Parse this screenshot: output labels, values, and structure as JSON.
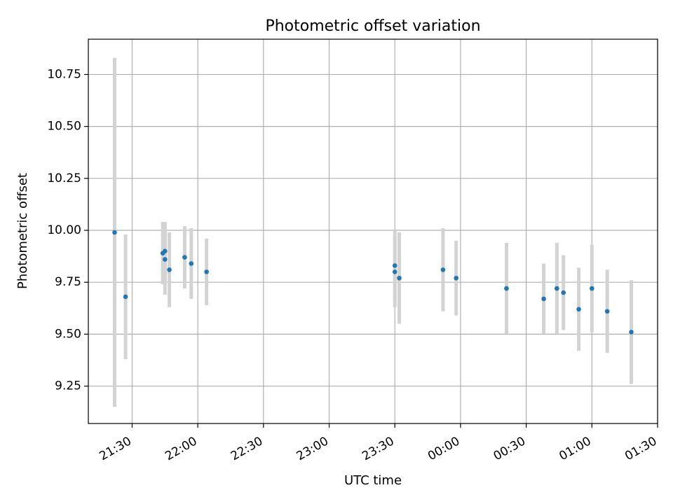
{
  "chart_data": {
    "type": "scatter",
    "title": "Photometric offset variation",
    "xlabel": "UTC time",
    "ylabel": "Photometric offset",
    "xlim": [
      "21:10",
      "01:30"
    ],
    "ylim": [
      9.07,
      10.92
    ],
    "x_ticks": [
      "21:30",
      "22:00",
      "22:30",
      "23:00",
      "23:30",
      "00:00",
      "00:30",
      "01:00",
      "01:30"
    ],
    "y_ticks": [
      9.25,
      9.5,
      9.75,
      10.0,
      10.25,
      10.5,
      10.75
    ],
    "grid": true,
    "colors": {
      "point": "#1f77b4",
      "errorbar": "#d3d3d3",
      "grid": "#b0b0b0"
    },
    "points": [
      {
        "x": "21:22",
        "y": 9.99,
        "err": 0.84
      },
      {
        "x": "21:27",
        "y": 9.68,
        "err": 0.3
      },
      {
        "x": "21:44",
        "y": 9.89,
        "err": 0.15
      },
      {
        "x": "21:45",
        "y": 9.9,
        "err": 0.14
      },
      {
        "x": "21:45",
        "y": 9.86,
        "err": 0.17
      },
      {
        "x": "21:47",
        "y": 9.81,
        "err": 0.18
      },
      {
        "x": "21:54",
        "y": 9.87,
        "err": 0.15
      },
      {
        "x": "21:57",
        "y": 9.84,
        "err": 0.17
      },
      {
        "x": "22:04",
        "y": 9.8,
        "err": 0.16
      },
      {
        "x": "23:30",
        "y": 9.83,
        "err": 0.17
      },
      {
        "x": "23:30",
        "y": 9.8,
        "err": 0.17
      },
      {
        "x": "23:32",
        "y": 9.77,
        "err": 0.22
      },
      {
        "x": "23:52",
        "y": 9.81,
        "err": 0.2
      },
      {
        "x": "23:58",
        "y": 9.77,
        "err": 0.18
      },
      {
        "x": "00:21",
        "y": 9.72,
        "err": 0.22
      },
      {
        "x": "00:38",
        "y": 9.67,
        "err": 0.17
      },
      {
        "x": "00:44",
        "y": 9.72,
        "err": 0.22
      },
      {
        "x": "00:47",
        "y": 9.7,
        "err": 0.18
      },
      {
        "x": "00:54",
        "y": 9.62,
        "err": 0.2
      },
      {
        "x": "01:00",
        "y": 9.72,
        "err": 0.21
      },
      {
        "x": "01:07",
        "y": 9.61,
        "err": 0.2
      },
      {
        "x": "01:18",
        "y": 9.51,
        "err": 0.25
      }
    ]
  }
}
